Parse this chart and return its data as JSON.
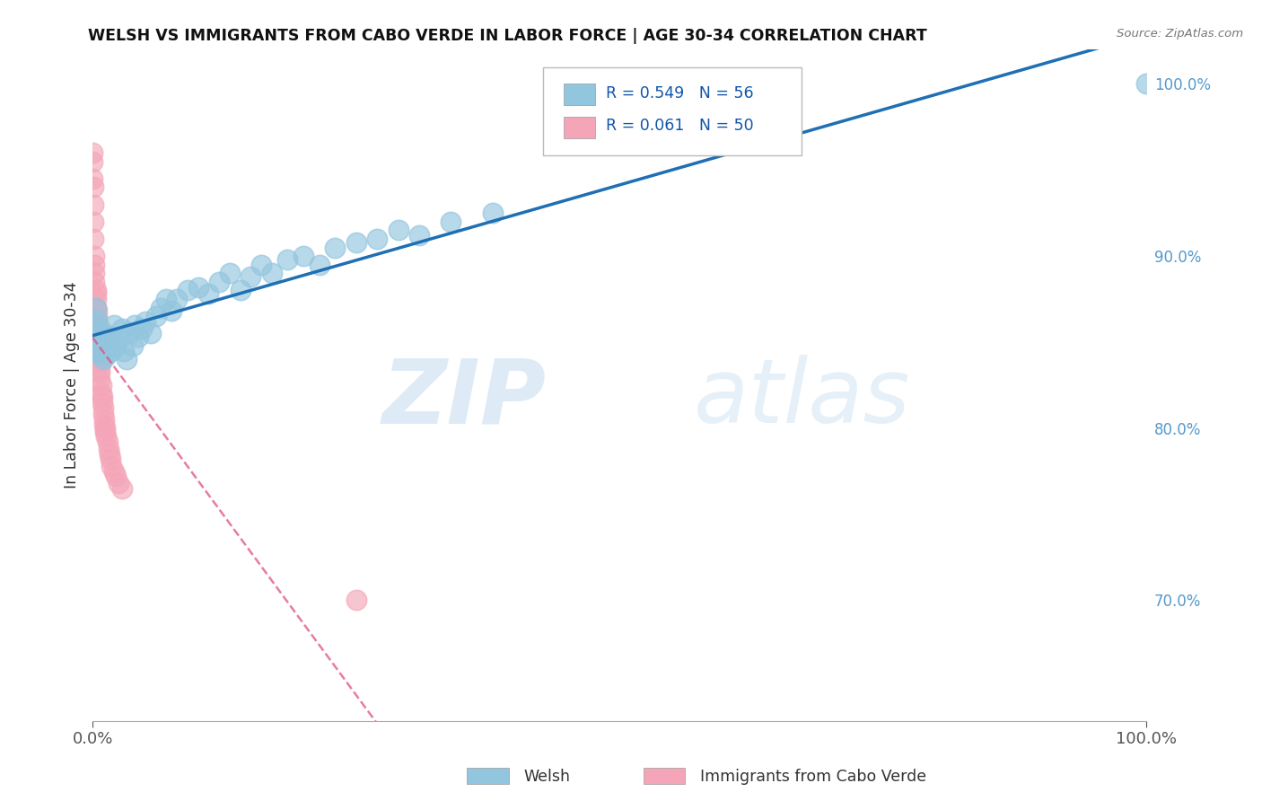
{
  "title": "WELSH VS IMMIGRANTS FROM CABO VERDE IN LABOR FORCE | AGE 30-34 CORRELATION CHART",
  "source_text": "Source: ZipAtlas.com",
  "ylabel": "In Labor Force | Age 30-34",
  "welsh_R": 0.549,
  "welsh_N": 56,
  "caboverde_R": 0.061,
  "caboverde_N": 50,
  "xlim": [
    0.0,
    1.0
  ],
  "ylim": [
    0.63,
    1.02
  ],
  "x_tick_labels": [
    "0.0%",
    "100.0%"
  ],
  "y_ticks_right": [
    0.7,
    0.8,
    0.9,
    1.0
  ],
  "y_tick_labels_right": [
    "70.0%",
    "80.0%",
    "90.0%",
    "100.0%"
  ],
  "welsh_color": "#92c5de",
  "caboverde_color": "#f4a6b8",
  "welsh_line_color": "#1f6fb5",
  "caboverde_line_color": "#e05080",
  "watermark_zip": "ZIP",
  "watermark_atlas": "atlas",
  "welsh_x": [
    0.003,
    0.003,
    0.004,
    0.004,
    0.005,
    0.005,
    0.006,
    0.006,
    0.007,
    0.008,
    0.009,
    0.01,
    0.011,
    0.012,
    0.013,
    0.014,
    0.016,
    0.018,
    0.02,
    0.022,
    0.025,
    0.028,
    0.03,
    0.032,
    0.035,
    0.038,
    0.04,
    0.043,
    0.047,
    0.05,
    0.055,
    0.06,
    0.065,
    0.07,
    0.075,
    0.08,
    0.09,
    0.1,
    0.11,
    0.12,
    0.13,
    0.14,
    0.15,
    0.16,
    0.17,
    0.185,
    0.2,
    0.215,
    0.23,
    0.25,
    0.27,
    0.29,
    0.31,
    0.34,
    0.38,
    1.0
  ],
  "welsh_y": [
    0.87,
    0.855,
    0.863,
    0.848,
    0.86,
    0.845,
    0.858,
    0.843,
    0.855,
    0.85,
    0.845,
    0.84,
    0.855,
    0.848,
    0.842,
    0.85,
    0.853,
    0.845,
    0.86,
    0.848,
    0.852,
    0.858,
    0.845,
    0.84,
    0.855,
    0.848,
    0.86,
    0.853,
    0.858,
    0.862,
    0.855,
    0.865,
    0.87,
    0.875,
    0.868,
    0.875,
    0.88,
    0.882,
    0.878,
    0.885,
    0.89,
    0.88,
    0.888,
    0.895,
    0.89,
    0.898,
    0.9,
    0.895,
    0.905,
    0.908,
    0.91,
    0.915,
    0.912,
    0.92,
    0.925,
    1.0
  ],
  "cabo_x": [
    0.0,
    0.0,
    0.0,
    0.001,
    0.001,
    0.001,
    0.001,
    0.002,
    0.002,
    0.002,
    0.002,
    0.003,
    0.003,
    0.003,
    0.003,
    0.004,
    0.004,
    0.004,
    0.004,
    0.005,
    0.005,
    0.005,
    0.005,
    0.006,
    0.006,
    0.006,
    0.007,
    0.007,
    0.007,
    0.008,
    0.008,
    0.009,
    0.009,
    0.01,
    0.01,
    0.011,
    0.011,
    0.012,
    0.012,
    0.013,
    0.014,
    0.015,
    0.016,
    0.017,
    0.018,
    0.02,
    0.022,
    0.025,
    0.028,
    0.25
  ],
  "cabo_y": [
    0.96,
    0.955,
    0.945,
    0.94,
    0.93,
    0.92,
    0.91,
    0.9,
    0.895,
    0.89,
    0.885,
    0.88,
    0.878,
    0.875,
    0.87,
    0.868,
    0.865,
    0.862,
    0.858,
    0.855,
    0.852,
    0.848,
    0.845,
    0.842,
    0.84,
    0.838,
    0.835,
    0.832,
    0.828,
    0.825,
    0.82,
    0.818,
    0.815,
    0.812,
    0.808,
    0.805,
    0.802,
    0.8,
    0.798,
    0.795,
    0.792,
    0.788,
    0.785,
    0.782,
    0.778,
    0.775,
    0.772,
    0.768,
    0.765,
    0.7
  ],
  "line_x_start": 0.0,
  "line_x_end": 1.0
}
